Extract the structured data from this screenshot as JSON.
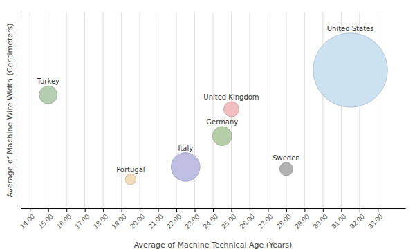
{
  "chart_data": {
    "type": "scatter",
    "labels": [
      "United States",
      "Turkey",
      "United Kingdom",
      "Germany",
      "Italy",
      "Portugal",
      "Sweden"
    ],
    "x": [
      31.5,
      15.0,
      25.0,
      24.5,
      22.5,
      19.5,
      28.0
    ],
    "values": [
      8.2,
      7.0,
      6.3,
      5.0,
      3.5,
      2.9,
      3.4
    ],
    "sizes": [
      12000,
      700,
      500,
      800,
      1800,
      250,
      380
    ],
    "colors": [
      "#c8dff0",
      "#adc9a8",
      "#f0b8b8",
      "#adc9a0",
      "#b8b8e0",
      "#f0d8b0",
      "#aaaaaa"
    ],
    "x_label": "Average of Machine Technical Age (Years)",
    "y_label": "Average of Machine Wire Width (Centimeters)",
    "xlim": [
      13.5,
      34.5
    ],
    "ylim": [
      1.5,
      11.0
    ],
    "xticks": [
      {
        "value": 14.0,
        "label": "14.00"
      },
      {
        "value": 15.0,
        "label": "15.00"
      },
      {
        "value": 16.0,
        "label": "16.00"
      },
      {
        "value": 17.0,
        "label": "17.00"
      },
      {
        "value": 18.0,
        "label": "18.00"
      },
      {
        "value": 19.0,
        "label": "19.00"
      },
      {
        "value": 20.0,
        "label": "20.00"
      },
      {
        "value": 21.0,
        "label": "21.00"
      },
      {
        "value": 22.0,
        "label": "22.00"
      },
      {
        "value": 23.0,
        "label": "23.00"
      },
      {
        "value": 24.0,
        "label": "24.00"
      },
      {
        "value": 25.0,
        "label": "25.00"
      },
      {
        "value": 26.0,
        "label": "26.00"
      },
      {
        "value": 27.0,
        "label": "27.00"
      },
      {
        "value": 28.0,
        "label": "28.00"
      },
      {
        "value": 29.0,
        "label": "29.00"
      },
      {
        "value": 30.0,
        "label": "30.00"
      },
      {
        "value": 31.0,
        "label": "31.00"
      },
      {
        "value": 32.0,
        "label": "32.00"
      },
      {
        "value": 33.0,
        "label": "33.00"
      }
    ],
    "grid": true,
    "tick_labels": "x"
  }
}
